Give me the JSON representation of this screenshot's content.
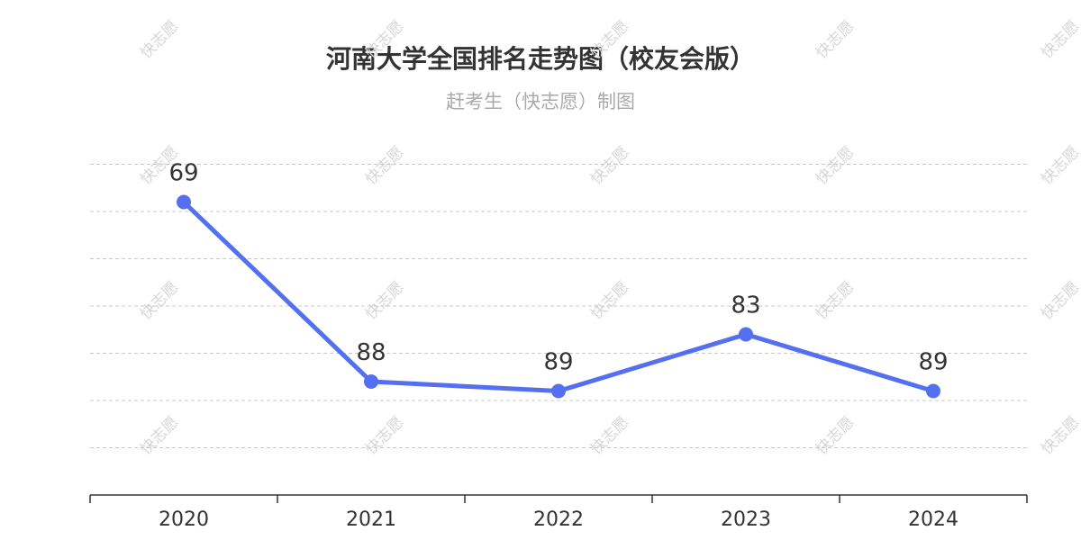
{
  "title": "河南大学全国排名走势图（校友会版）",
  "subtitle": "赶考生（快志愿）制图",
  "watermark_text": "快志愿",
  "colors": {
    "line": "#5470f0",
    "grid": "#c8c8c8",
    "axis": "#333333",
    "label": "#333333"
  },
  "chart_data": {
    "type": "line",
    "title": "河南大学全国排名走势图（校友会版）",
    "subtitle": "赶考生（快志愿）制图",
    "categories": [
      "2020",
      "2021",
      "2022",
      "2023",
      "2024"
    ],
    "series": [
      {
        "values": [
          69,
          88,
          89,
          83,
          89
        ]
      }
    ],
    "y_inverse": true,
    "ylim": [
      60,
      100
    ],
    "y_tick_step": 5,
    "grid": true,
    "legend": false
  }
}
